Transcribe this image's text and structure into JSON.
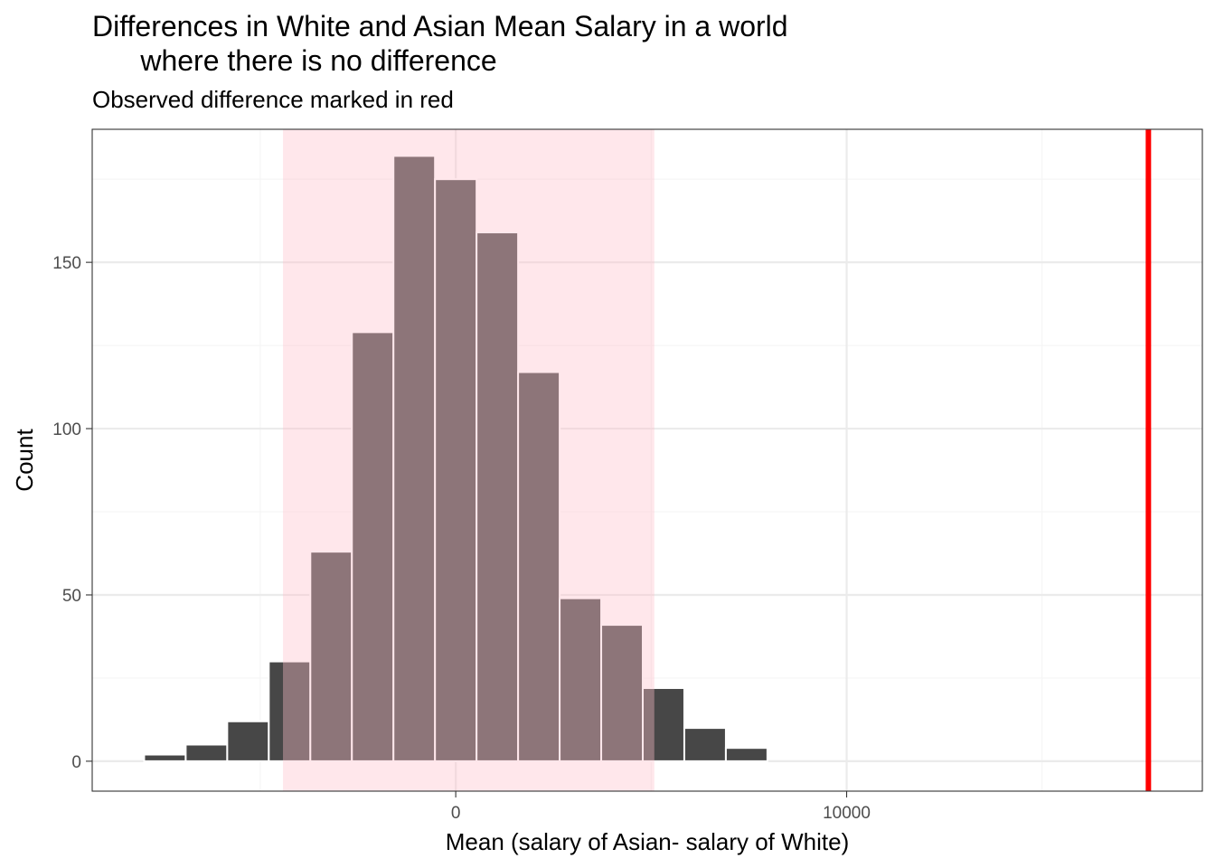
{
  "chart_data": {
    "type": "bar",
    "title": "Differences in White and Asian Mean Salary in a world\n      where there is no difference",
    "subtitle": "Observed difference marked in red",
    "xlabel": "Mean (salary of Asian- salary of White)",
    "ylabel": "Count",
    "xlim": [
      -9300,
      19100
    ],
    "ylim": [
      -9,
      190
    ],
    "x_ticks": [
      0,
      10000
    ],
    "x_tick_labels": [
      "0",
      "10000"
    ],
    "x_minor_ticks": [
      -5000,
      5000,
      15000
    ],
    "y_ticks": [
      0,
      50,
      100,
      150
    ],
    "y_tick_labels": [
      "0",
      "50",
      "100",
      "150"
    ],
    "y_minor_ticks": [
      25,
      75,
      125,
      175
    ],
    "grid": true,
    "bin_width": 1063,
    "bins": [
      {
        "x_center": -7440,
        "count": 2
      },
      {
        "x_center": -6377,
        "count": 5
      },
      {
        "x_center": -5314,
        "count": 12
      },
      {
        "x_center": -4251,
        "count": 30
      },
      {
        "x_center": -3188,
        "count": 63
      },
      {
        "x_center": -2125,
        "count": 129
      },
      {
        "x_center": -1062,
        "count": 182
      },
      {
        "x_center": 1,
        "count": 175
      },
      {
        "x_center": 1064,
        "count": 159
      },
      {
        "x_center": 2127,
        "count": 117
      },
      {
        "x_center": 3190,
        "count": 49
      },
      {
        "x_center": 4253,
        "count": 41
      },
      {
        "x_center": 5316,
        "count": 22
      },
      {
        "x_center": 6379,
        "count": 10
      },
      {
        "x_center": 7442,
        "count": 4
      }
    ],
    "shaded_interval": {
      "lower": -4420,
      "upper": 5080
    },
    "observed_difference": 17720,
    "colors": {
      "bar_fill": "#474747",
      "bar_outline": "#ffffff",
      "interval_shade": "#ffc0cb",
      "interval_opacity": 0.38,
      "observed_line": "#ff0000",
      "panel_border": "#333333",
      "grid_major": "#ebebeb",
      "grid_minor": "#f5f5f5",
      "axis_text": "#4d4d4d"
    }
  }
}
